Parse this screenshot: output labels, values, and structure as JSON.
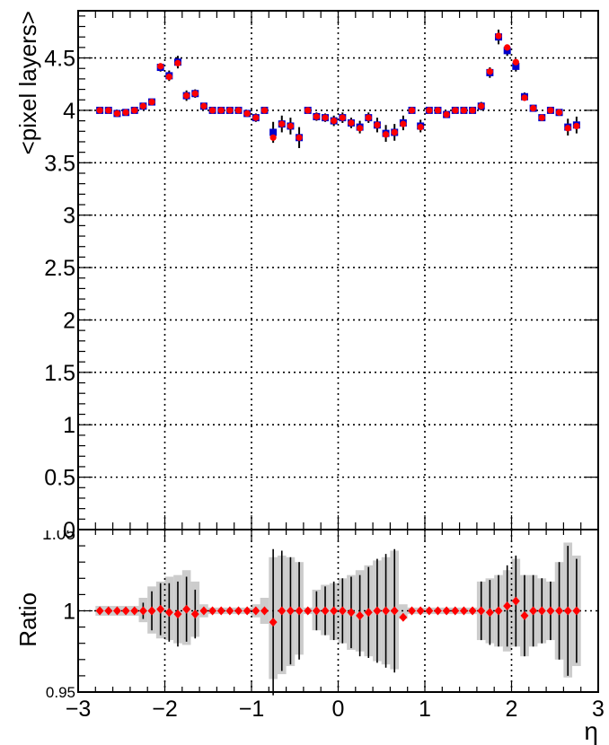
{
  "chart_data": [
    {
      "type": "scatter",
      "panel": "main",
      "title": "",
      "xlabel": "",
      "ylabel": "<pixel layers>",
      "xlim": [
        -3,
        3
      ],
      "ylim": [
        0,
        4.95
      ],
      "grid": true,
      "yticks": [
        {
          "v": 0,
          "t": "0"
        },
        {
          "v": 0.5,
          "t": "0.5"
        },
        {
          "v": 1,
          "t": "1"
        },
        {
          "v": 1.5,
          "t": "1.5"
        },
        {
          "v": 2,
          "t": "2"
        },
        {
          "v": 2.5,
          "t": "2.5"
        },
        {
          "v": 3,
          "t": "3"
        },
        {
          "v": 3.5,
          "t": "3.5"
        },
        {
          "v": 4,
          "t": "4"
        },
        {
          "v": 4.5,
          "t": "4.5"
        }
      ],
      "x": [
        -2.75,
        -2.65,
        -2.55,
        -2.45,
        -2.35,
        -2.25,
        -2.15,
        -2.05,
        -1.95,
        -1.85,
        -1.75,
        -1.65,
        -1.55,
        -1.45,
        -1.35,
        -1.25,
        -1.15,
        -1.05,
        -0.95,
        -0.85,
        -0.75,
        -0.65,
        -0.55,
        -0.45,
        -0.35,
        -0.25,
        -0.15,
        -0.05,
        0.05,
        0.15,
        0.25,
        0.35,
        0.45,
        0.55,
        0.65,
        0.75,
        0.85,
        0.95,
        1.05,
        1.15,
        1.25,
        1.35,
        1.45,
        1.55,
        1.65,
        1.75,
        1.85,
        1.95,
        2.05,
        2.15,
        2.25,
        2.35,
        2.45,
        2.55,
        2.65,
        2.75
      ],
      "series": [
        {
          "color": "#0000cc",
          "marker": "square",
          "values": [
            4.0,
            4.0,
            3.97,
            3.98,
            4.0,
            4.04,
            4.08,
            4.41,
            4.33,
            4.46,
            4.14,
            4.16,
            4.04,
            4.0,
            4.0,
            4.0,
            4.0,
            3.97,
            3.93,
            4.0,
            3.79,
            3.87,
            3.85,
            3.74,
            4.0,
            3.94,
            3.93,
            3.9,
            3.93,
            3.88,
            3.84,
            3.93,
            3.86,
            3.78,
            3.79,
            3.88,
            4.0,
            3.85,
            4.0,
            4.0,
            3.96,
            4.0,
            4.0,
            4.0,
            4.04,
            4.36,
            4.7,
            4.57,
            4.42,
            4.13,
            4.02,
            3.93,
            4.0,
            3.98,
            3.84,
            3.86
          ],
          "errors": [
            0.02,
            0.02,
            0.02,
            0.02,
            0.02,
            0.02,
            0.03,
            0.04,
            0.05,
            0.06,
            0.05,
            0.04,
            0.03,
            0.02,
            0.02,
            0.02,
            0.02,
            0.03,
            0.04,
            0.02,
            0.1,
            0.08,
            0.08,
            0.1,
            0.03,
            0.04,
            0.04,
            0.05,
            0.05,
            0.05,
            0.06,
            0.05,
            0.07,
            0.08,
            0.08,
            0.07,
            0.03,
            0.06,
            0.02,
            0.02,
            0.02,
            0.02,
            0.02,
            0.02,
            0.04,
            0.05,
            0.07,
            0.05,
            0.05,
            0.04,
            0.03,
            0.03,
            0.02,
            0.03,
            0.08,
            0.08
          ]
        },
        {
          "color": "#ff0000",
          "marker": "circle",
          "values": [
            4.0,
            4.0,
            3.97,
            3.98,
            4.0,
            4.04,
            4.08,
            4.42,
            4.32,
            4.45,
            4.14,
            4.16,
            4.04,
            4.0,
            4.0,
            4.0,
            4.0,
            3.97,
            3.93,
            4.0,
            3.74,
            3.87,
            3.85,
            3.74,
            4.0,
            3.94,
            3.93,
            3.9,
            3.93,
            3.88,
            3.83,
            3.93,
            3.86,
            3.77,
            3.79,
            3.87,
            4.0,
            3.84,
            4.0,
            4.0,
            3.96,
            4.0,
            4.0,
            4.0,
            4.04,
            4.37,
            4.71,
            4.6,
            4.46,
            4.12,
            4.02,
            3.93,
            4.0,
            3.98,
            3.83,
            3.85
          ]
        }
      ]
    },
    {
      "type": "scatter",
      "panel": "ratio",
      "title": "",
      "xlabel": "η",
      "ylabel": "Ratio",
      "xlim": [
        -3,
        3
      ],
      "ylim": [
        0.95,
        1.05
      ],
      "grid": true,
      "xticks": [
        {
          "v": -3,
          "t": "−3"
        },
        {
          "v": -2,
          "t": "−2"
        },
        {
          "v": -1,
          "t": "−1"
        },
        {
          "v": 0,
          "t": "0"
        },
        {
          "v": 1,
          "t": "1"
        },
        {
          "v": 2,
          "t": "2"
        },
        {
          "v": 3,
          "t": "3"
        }
      ],
      "yticks": [
        {
          "v": 0.95,
          "t": "0.95"
        },
        {
          "v": 1,
          "t": "1"
        }
      ],
      "top_tick_partial": "1.05",
      "x": [
        -2.75,
        -2.65,
        -2.55,
        -2.45,
        -2.35,
        -2.25,
        -2.15,
        -2.05,
        -1.95,
        -1.85,
        -1.75,
        -1.65,
        -1.55,
        -1.45,
        -1.35,
        -1.25,
        -1.15,
        -1.05,
        -0.95,
        -0.85,
        -0.75,
        -0.65,
        -0.55,
        -0.45,
        -0.35,
        -0.25,
        -0.15,
        -0.05,
        0.05,
        0.15,
        0.25,
        0.35,
        0.45,
        0.55,
        0.65,
        0.75,
        0.85,
        0.95,
        1.05,
        1.15,
        1.25,
        1.35,
        1.45,
        1.55,
        1.65,
        1.75,
        1.85,
        1.95,
        2.05,
        2.15,
        2.25,
        2.35,
        2.45,
        2.55,
        2.65,
        2.75
      ],
      "values": [
        1.0,
        1.0,
        1.0,
        1.0,
        1.0,
        1.0,
        1.0,
        1.001,
        0.999,
        0.998,
        1.001,
        0.998,
        1.0,
        1.0,
        1.0,
        1.0,
        1.0,
        1.0,
        1.0,
        1.0,
        0.993,
        1.0,
        1.0,
        1.0,
        1.0,
        1.0,
        1.0,
        1.0,
        1.0,
        0.999,
        0.997,
        0.999,
        1.0,
        1.0,
        1.0,
        0.996,
        1.0,
        1.0,
        1.0,
        1.0,
        1.0,
        1.0,
        1.0,
        1.0,
        1.0,
        0.999,
        1.0,
        1.003,
        1.006,
        0.997,
        1.0,
        1.0,
        1.0,
        1.0,
        1.0,
        1.0
      ],
      "stat_errors": [
        0.0,
        0.0,
        0.0,
        0.0,
        0.0,
        0.005,
        0.012,
        0.016,
        0.018,
        0.02,
        0.02,
        0.015,
        0.0,
        0.0,
        0.0,
        0.0,
        0.0,
        0.0,
        0.0,
        0.0,
        0.045,
        0.037,
        0.033,
        0.03,
        0.0,
        0.012,
        0.015,
        0.018,
        0.02,
        0.022,
        0.025,
        0.028,
        0.032,
        0.035,
        0.038,
        0.0,
        0.0,
        0.0,
        0.0,
        0.0,
        0.0,
        0.0,
        0.0,
        0.0,
        0.018,
        0.02,
        0.022,
        0.025,
        0.028,
        0.025,
        0.022,
        0.02,
        0.018,
        0.03,
        0.04,
        0.032
      ],
      "bands": [
        {
          "x0": -2.8,
          "x1": -2.3,
          "lo": 0.997,
          "hi": 1.003
        },
        {
          "x0": -2.3,
          "x1": -2.2,
          "lo": 0.993,
          "hi": 1.008
        },
        {
          "x0": -2.2,
          "x1": -2.1,
          "lo": 0.986,
          "hi": 1.015
        },
        {
          "x0": -2.1,
          "x1": -2.0,
          "lo": 0.983,
          "hi": 1.018
        },
        {
          "x0": -2.0,
          "x1": -1.9,
          "lo": 0.982,
          "hi": 1.021
        },
        {
          "x0": -1.9,
          "x1": -1.8,
          "lo": 0.98,
          "hi": 1.022
        },
        {
          "x0": -1.8,
          "x1": -1.7,
          "lo": 0.979,
          "hi": 1.025
        },
        {
          "x0": -1.7,
          "x1": -1.6,
          "lo": 0.984,
          "hi": 1.018
        },
        {
          "x0": -1.6,
          "x1": -1.5,
          "lo": 0.996,
          "hi": 1.004
        },
        {
          "x0": -1.5,
          "x1": -1.0,
          "lo": 0.998,
          "hi": 1.002
        },
        {
          "x0": -1.0,
          "x1": -0.9,
          "lo": 0.996,
          "hi": 1.004
        },
        {
          "x0": -0.9,
          "x1": -0.8,
          "lo": 0.992,
          "hi": 1.008
        },
        {
          "x0": -0.8,
          "x1": -0.7,
          "lo": 0.958,
          "hi": 1.033
        },
        {
          "x0": -0.7,
          "x1": -0.6,
          "lo": 0.961,
          "hi": 1.034
        },
        {
          "x0": -0.6,
          "x1": -0.5,
          "lo": 0.966,
          "hi": 1.033
        },
        {
          "x0": -0.5,
          "x1": -0.4,
          "lo": 0.973,
          "hi": 1.03
        },
        {
          "x0": -0.4,
          "x1": -0.3,
          "lo": 0.998,
          "hi": 1.002
        },
        {
          "x0": -0.3,
          "x1": -0.2,
          "lo": 0.988,
          "hi": 1.013
        },
        {
          "x0": -0.2,
          "x1": -0.1,
          "lo": 0.985,
          "hi": 1.016
        },
        {
          "x0": -0.1,
          "x1": 0.0,
          "lo": 0.982,
          "hi": 1.017
        },
        {
          "x0": 0.0,
          "x1": 0.1,
          "lo": 0.98,
          "hi": 1.02
        },
        {
          "x0": 0.1,
          "x1": 0.2,
          "lo": 0.976,
          "hi": 1.022
        },
        {
          "x0": 0.2,
          "x1": 0.3,
          "lo": 0.975,
          "hi": 1.025
        },
        {
          "x0": 0.3,
          "x1": 0.4,
          "lo": 0.972,
          "hi": 1.028
        },
        {
          "x0": 0.4,
          "x1": 0.5,
          "lo": 0.969,
          "hi": 1.031
        },
        {
          "x0": 0.5,
          "x1": 0.6,
          "lo": 0.967,
          "hi": 1.033
        },
        {
          "x0": 0.6,
          "x1": 0.7,
          "lo": 0.964,
          "hi": 1.037
        },
        {
          "x0": 0.7,
          "x1": 0.8,
          "lo": 0.995,
          "hi": 1.004
        },
        {
          "x0": 0.8,
          "x1": 1.6,
          "lo": 0.998,
          "hi": 1.002
        },
        {
          "x0": 1.6,
          "x1": 1.7,
          "lo": 0.982,
          "hi": 1.018
        },
        {
          "x0": 1.7,
          "x1": 1.8,
          "lo": 0.98,
          "hi": 1.02
        },
        {
          "x0": 1.8,
          "x1": 1.9,
          "lo": 0.978,
          "hi": 1.022
        },
        {
          "x0": 1.9,
          "x1": 2.0,
          "lo": 0.975,
          "hi": 1.025
        },
        {
          "x0": 2.0,
          "x1": 2.1,
          "lo": 0.978,
          "hi": 1.032
        },
        {
          "x0": 2.1,
          "x1": 2.2,
          "lo": 0.972,
          "hi": 1.022
        },
        {
          "x0": 2.2,
          "x1": 2.3,
          "lo": 0.978,
          "hi": 1.022
        },
        {
          "x0": 2.3,
          "x1": 2.4,
          "lo": 0.98,
          "hi": 1.02
        },
        {
          "x0": 2.4,
          "x1": 2.5,
          "lo": 0.982,
          "hi": 1.018
        },
        {
          "x0": 2.5,
          "x1": 2.6,
          "lo": 0.97,
          "hi": 1.03
        },
        {
          "x0": 2.6,
          "x1": 2.7,
          "lo": 0.959,
          "hi": 1.042
        },
        {
          "x0": 2.7,
          "x1": 2.8,
          "lo": 0.966,
          "hi": 1.034
        }
      ],
      "series": [
        {
          "color": "#ff0000",
          "marker": "diamond",
          "band_color": "#cccccc"
        }
      ]
    }
  ]
}
